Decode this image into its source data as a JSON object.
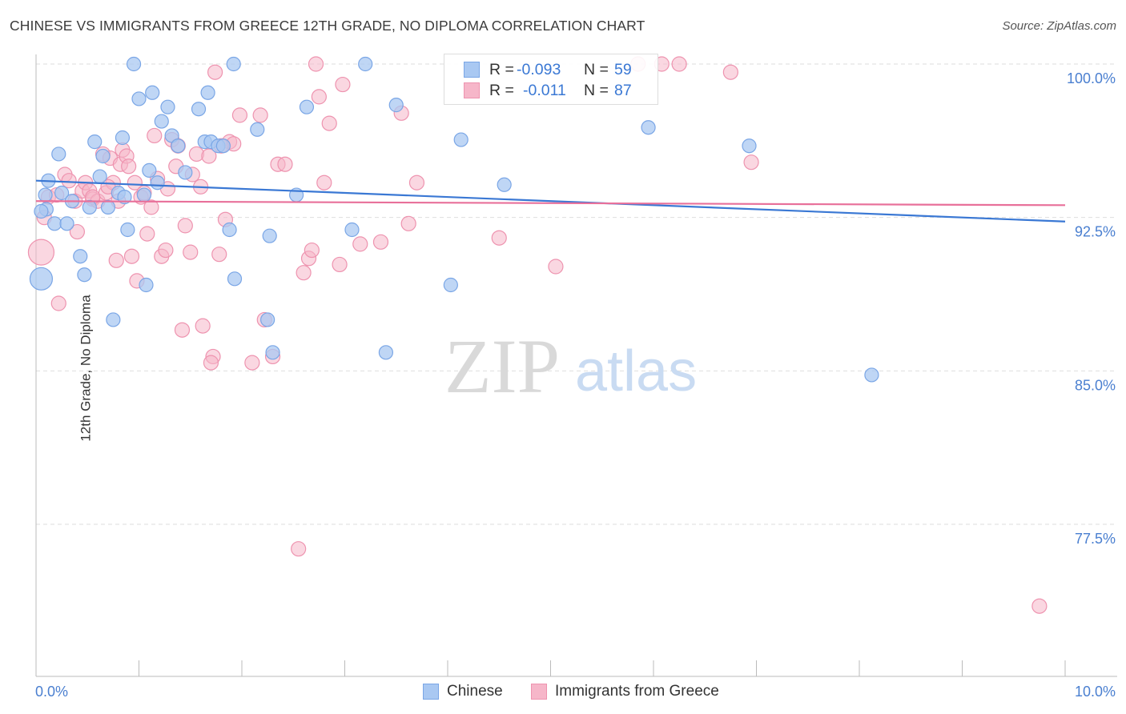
{
  "title": "CHINESE VS IMMIGRANTS FROM GREECE 12TH GRADE, NO DIPLOMA CORRELATION CHART",
  "source": "Source: ZipAtlas.com",
  "watermark": {
    "zip": "ZIP",
    "atlas": "atlas"
  },
  "colors": {
    "blue_fill": "#a9c8f2",
    "blue_stroke": "#7aa6e6",
    "blue_line": "#3a78d4",
    "pink_fill": "#f6b6c9",
    "pink_stroke": "#ee93af",
    "pink_line": "#e8709a",
    "tick_text": "#4a7fd0",
    "grid": "#dedede"
  },
  "legend": {
    "rows": [
      {
        "r_label": "R =",
        "r_value": "-0.093",
        "n_label": "N =",
        "n_value": "59"
      },
      {
        "r_label": "R =",
        "r_value": "-0.011",
        "n_label": "N =",
        "n_value": "87"
      }
    ]
  },
  "bottom_legend": {
    "series1": "Chinese",
    "series2": "Immigrants from Greece"
  },
  "chart_data": {
    "type": "scatter",
    "title": "CHINESE VS IMMIGRANTS FROM GREECE 12TH GRADE, NO DIPLOMA CORRELATION CHART",
    "xlabel": "",
    "ylabel": "12th Grade, No Diploma",
    "xlim": [
      0,
      10
    ],
    "ylim": [
      70.5,
      100.8
    ],
    "x_tick_labels": {
      "left": "0.0%",
      "right": "10.0%"
    },
    "y_ticks": [
      {
        "value": 100.0,
        "label": "100.0%"
      },
      {
        "value": 92.5,
        "label": "92.5%"
      },
      {
        "value": 85.0,
        "label": "85.0%"
      },
      {
        "value": 77.5,
        "label": "77.5%"
      }
    ],
    "series": [
      {
        "name": "Chinese",
        "r": -0.093,
        "n": 59,
        "trend": {
          "x": [
            0,
            10
          ],
          "y": [
            94.3,
            92.3
          ]
        },
        "points": [
          [
            0.09,
            93.6
          ],
          [
            0.1,
            92.9
          ],
          [
            0.12,
            94.3
          ],
          [
            0.18,
            92.2
          ],
          [
            0.22,
            95.6
          ],
          [
            0.25,
            93.7
          ],
          [
            0.3,
            92.2
          ],
          [
            0.35,
            93.3
          ],
          [
            0.43,
            90.6
          ],
          [
            0.47,
            89.7
          ],
          [
            0.52,
            93.0
          ],
          [
            0.57,
            96.2
          ],
          [
            0.62,
            94.5
          ],
          [
            0.65,
            95.5
          ],
          [
            0.7,
            93.0
          ],
          [
            0.75,
            87.5
          ],
          [
            0.8,
            93.7
          ],
          [
            0.84,
            96.4
          ],
          [
            0.86,
            93.5
          ],
          [
            0.89,
            91.9
          ],
          [
            0.95,
            100.0
          ],
          [
            1.0,
            98.3
          ],
          [
            1.05,
            93.6
          ],
          [
            1.07,
            89.2
          ],
          [
            1.1,
            94.8
          ],
          [
            1.13,
            98.6
          ],
          [
            1.18,
            94.2
          ],
          [
            1.22,
            97.2
          ],
          [
            1.28,
            97.9
          ],
          [
            1.32,
            96.5
          ],
          [
            1.38,
            96.0
          ],
          [
            1.45,
            94.7
          ],
          [
            1.58,
            97.8
          ],
          [
            1.64,
            96.2
          ],
          [
            1.67,
            98.6
          ],
          [
            1.7,
            96.2
          ],
          [
            1.77,
            96.0
          ],
          [
            1.82,
            96.0
          ],
          [
            1.88,
            91.9
          ],
          [
            1.92,
            100.0
          ],
          [
            1.93,
            89.5
          ],
          [
            2.15,
            96.8
          ],
          [
            2.25,
            87.5
          ],
          [
            2.27,
            91.6
          ],
          [
            2.3,
            85.9
          ],
          [
            2.53,
            93.6
          ],
          [
            2.63,
            97.9
          ],
          [
            3.07,
            91.9
          ],
          [
            3.2,
            100.0
          ],
          [
            3.4,
            85.9
          ],
          [
            3.5,
            98.0
          ],
          [
            4.03,
            89.2
          ],
          [
            4.13,
            96.3
          ],
          [
            4.55,
            94.1
          ],
          [
            5.95,
            96.9
          ],
          [
            8.12,
            84.8
          ],
          [
            6.93,
            96.0
          ],
          [
            0.05,
            89.5
          ],
          [
            0.05,
            92.8
          ]
        ]
      },
      {
        "name": "Immigrants from Greece",
        "r": -0.011,
        "n": 87,
        "trend": {
          "x": [
            0,
            10
          ],
          "y": [
            93.3,
            93.1
          ]
        },
        "points": [
          [
            0.05,
            90.8
          ],
          [
            0.08,
            92.5
          ],
          [
            0.12,
            93.5
          ],
          [
            0.2,
            93.6
          ],
          [
            0.22,
            88.3
          ],
          [
            0.28,
            94.6
          ],
          [
            0.32,
            94.3
          ],
          [
            0.38,
            93.3
          ],
          [
            0.4,
            91.8
          ],
          [
            0.45,
            93.8
          ],
          [
            0.48,
            94.2
          ],
          [
            0.52,
            93.8
          ],
          [
            0.55,
            93.4
          ],
          [
            0.6,
            93.3
          ],
          [
            0.65,
            95.6
          ],
          [
            0.68,
            93.7
          ],
          [
            0.72,
            95.4
          ],
          [
            0.75,
            94.2
          ],
          [
            0.78,
            90.4
          ],
          [
            0.8,
            93.3
          ],
          [
            0.82,
            95.1
          ],
          [
            0.84,
            95.8
          ],
          [
            0.88,
            95.5
          ],
          [
            0.9,
            95.0
          ],
          [
            0.93,
            90.6
          ],
          [
            0.96,
            94.2
          ],
          [
            0.98,
            89.4
          ],
          [
            1.02,
            93.5
          ],
          [
            1.05,
            93.7
          ],
          [
            1.08,
            91.7
          ],
          [
            1.12,
            93.0
          ],
          [
            1.15,
            96.5
          ],
          [
            1.18,
            94.4
          ],
          [
            1.22,
            90.6
          ],
          [
            1.26,
            90.9
          ],
          [
            1.28,
            93.9
          ],
          [
            1.32,
            96.3
          ],
          [
            1.36,
            95.0
          ],
          [
            1.38,
            96.0
          ],
          [
            1.42,
            87.0
          ],
          [
            1.45,
            92.1
          ],
          [
            1.5,
            90.8
          ],
          [
            1.52,
            94.6
          ],
          [
            1.56,
            95.6
          ],
          [
            1.6,
            94.0
          ],
          [
            1.62,
            87.2
          ],
          [
            1.68,
            95.5
          ],
          [
            1.72,
            85.7
          ],
          [
            1.74,
            99.6
          ],
          [
            1.78,
            90.7
          ],
          [
            1.84,
            92.4
          ],
          [
            1.88,
            96.2
          ],
          [
            1.92,
            96.1
          ],
          [
            1.98,
            97.5
          ],
          [
            2.1,
            85.4
          ],
          [
            2.18,
            97.5
          ],
          [
            2.22,
            87.5
          ],
          [
            2.35,
            95.1
          ],
          [
            2.42,
            95.1
          ],
          [
            2.6,
            89.8
          ],
          [
            2.65,
            90.5
          ],
          [
            2.68,
            90.9
          ],
          [
            2.75,
            98.4
          ],
          [
            2.8,
            94.2
          ],
          [
            2.85,
            97.1
          ],
          [
            2.95,
            90.2
          ],
          [
            2.98,
            99.0
          ],
          [
            3.15,
            91.2
          ],
          [
            3.35,
            91.3
          ],
          [
            3.55,
            97.6
          ],
          [
            3.62,
            92.2
          ],
          [
            3.7,
            94.2
          ],
          [
            4.5,
            91.5
          ],
          [
            5.05,
            90.1
          ],
          [
            5.85,
            100.0
          ],
          [
            6.08,
            100.0
          ],
          [
            6.25,
            100.0
          ],
          [
            6.75,
            99.6
          ],
          [
            6.95,
            95.2
          ],
          [
            9.75,
            73.5
          ],
          [
            2.55,
            76.3
          ],
          [
            2.3,
            85.7
          ],
          [
            1.7,
            85.4
          ],
          [
            2.72,
            100.0
          ],
          [
            1.8,
            96.0
          ],
          [
            0.55,
            93.5
          ],
          [
            0.7,
            94.0
          ]
        ]
      }
    ]
  }
}
